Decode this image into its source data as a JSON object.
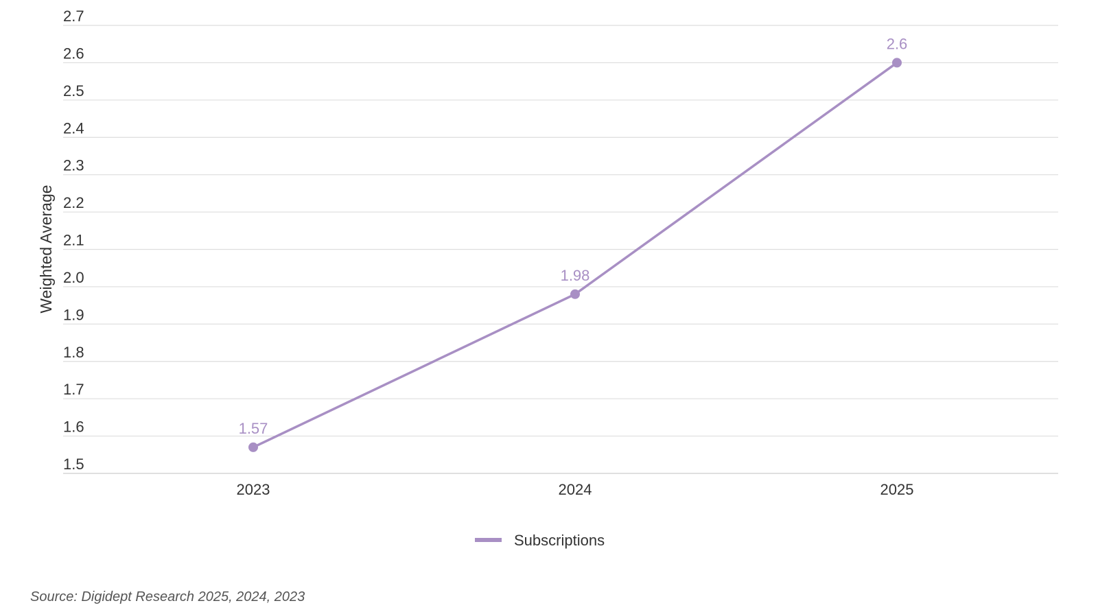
{
  "chart_data": {
    "type": "line",
    "categories": [
      "2023",
      "2024",
      "2025"
    ],
    "series": [
      {
        "name": "Subscriptions",
        "values": [
          1.57,
          1.98,
          2.6
        ],
        "color": "#a88fc4"
      }
    ],
    "data_labels": [
      "1.57",
      "1.98",
      "2.6"
    ],
    "ylabel": "Weighted Average",
    "xlabel": "",
    "ylim": [
      1.5,
      2.7
    ],
    "yticks": [
      "1.5",
      "1.6",
      "1.7",
      "1.8",
      "1.9",
      "2.0",
      "2.1",
      "2.2",
      "2.3",
      "2.4",
      "2.5",
      "2.6",
      "2.7"
    ],
    "grid": true,
    "legend_position": "bottom-center"
  },
  "source_note": "Source: Digidept Research 2025, 2024, 2023"
}
